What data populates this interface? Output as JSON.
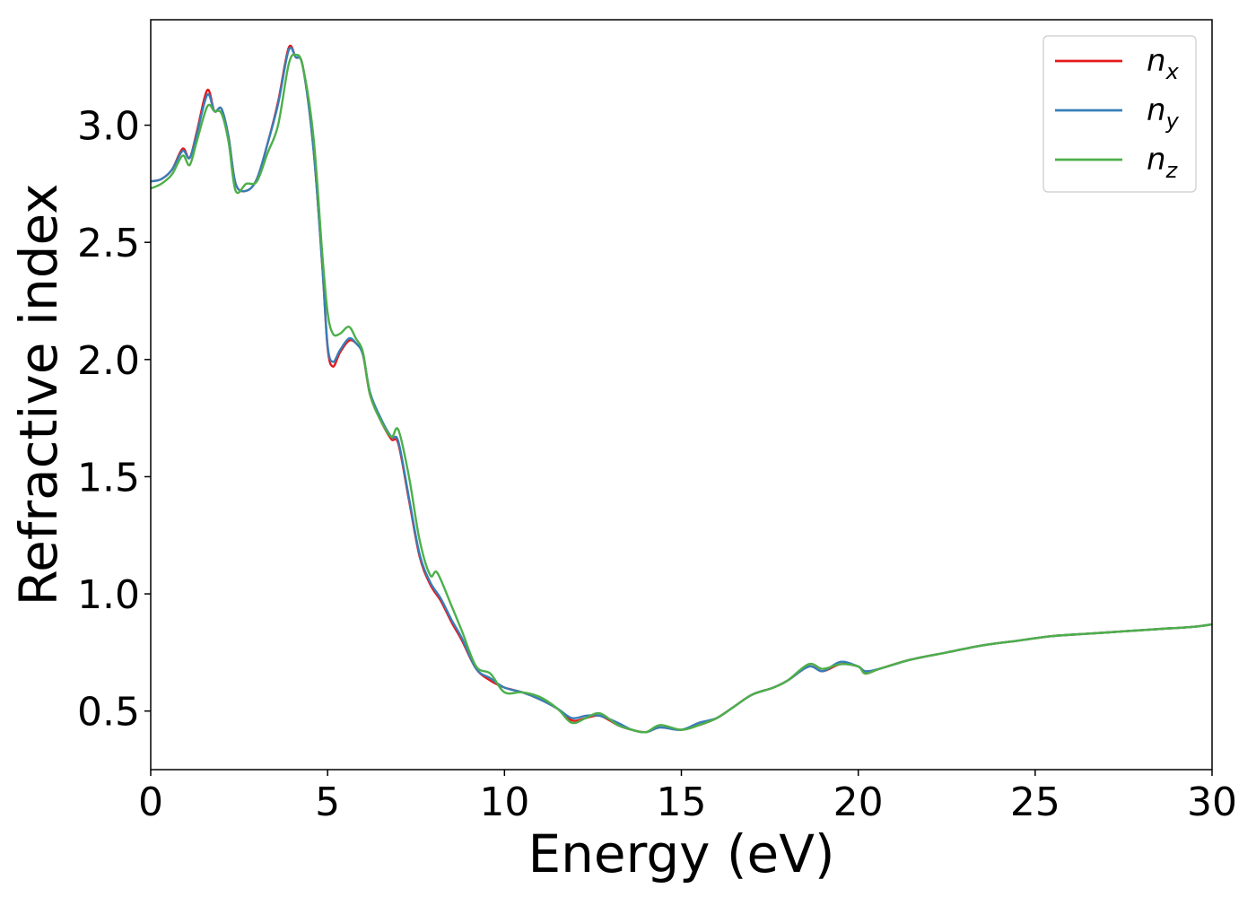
{
  "chart_data": {
    "type": "line",
    "title": "",
    "xlabel": "Energy (eV)",
    "ylabel": "Refractive index",
    "xlim": [
      0,
      30
    ],
    "ylim": [
      0.25,
      3.45
    ],
    "xticks": [
      0,
      5,
      10,
      15,
      20,
      25,
      30
    ],
    "xtick_labels": [
      "0",
      "5",
      "10",
      "15",
      "20",
      "25",
      "30"
    ],
    "yticks": [
      0.5,
      1.0,
      1.5,
      2.0,
      2.5,
      3.0
    ],
    "ytick_labels": [
      "0.5",
      "1.0",
      "1.5",
      "2.0",
      "2.5",
      "3.0"
    ],
    "grid": false,
    "legend_position": "top-right",
    "series": [
      {
        "name": "n_x",
        "label_main": "n",
        "label_sub": "x",
        "color": "#e41a1c",
        "points": [
          [
            0,
            2.76
          ],
          [
            0.3,
            2.77
          ],
          [
            0.6,
            2.81
          ],
          [
            0.9,
            2.9
          ],
          [
            1.1,
            2.86
          ],
          [
            1.3,
            2.97
          ],
          [
            1.6,
            3.15
          ],
          [
            1.8,
            3.06
          ],
          [
            2.0,
            3.07
          ],
          [
            2.2,
            2.95
          ],
          [
            2.4,
            2.75
          ],
          [
            2.7,
            2.72
          ],
          [
            3.0,
            2.77
          ],
          [
            3.3,
            2.92
          ],
          [
            3.6,
            3.1
          ],
          [
            3.9,
            3.33
          ],
          [
            4.1,
            3.29
          ],
          [
            4.3,
            3.25
          ],
          [
            4.6,
            2.9
          ],
          [
            4.85,
            2.4
          ],
          [
            5.0,
            2.05
          ],
          [
            5.15,
            1.97
          ],
          [
            5.35,
            2.03
          ],
          [
            5.6,
            2.08
          ],
          [
            5.8,
            2.07
          ],
          [
            6.0,
            2.02
          ],
          [
            6.2,
            1.85
          ],
          [
            6.5,
            1.74
          ],
          [
            6.8,
            1.66
          ],
          [
            7.0,
            1.64
          ],
          [
            7.3,
            1.4
          ],
          [
            7.6,
            1.16
          ],
          [
            7.9,
            1.04
          ],
          [
            8.2,
            0.97
          ],
          [
            8.5,
            0.88
          ],
          [
            8.8,
            0.8
          ],
          [
            9.2,
            0.68
          ],
          [
            9.6,
            0.63
          ],
          [
            10.0,
            0.6
          ],
          [
            10.5,
            0.58
          ],
          [
            11.0,
            0.55
          ],
          [
            11.5,
            0.51
          ],
          [
            11.9,
            0.46
          ],
          [
            12.3,
            0.47
          ],
          [
            12.7,
            0.48
          ],
          [
            13.2,
            0.44
          ],
          [
            13.6,
            0.42
          ],
          [
            14.0,
            0.41
          ],
          [
            14.4,
            0.43
          ],
          [
            15.0,
            0.42
          ],
          [
            15.5,
            0.44
          ],
          [
            16.0,
            0.47
          ],
          [
            16.5,
            0.52
          ],
          [
            17.0,
            0.57
          ],
          [
            17.6,
            0.6
          ],
          [
            18.0,
            0.63
          ],
          [
            18.6,
            0.69
          ],
          [
            19.0,
            0.67
          ],
          [
            19.5,
            0.7
          ],
          [
            20.0,
            0.69
          ],
          [
            20.2,
            0.66
          ],
          [
            20.6,
            0.68
          ],
          [
            21.5,
            0.72
          ],
          [
            22.5,
            0.75
          ],
          [
            23.5,
            0.78
          ],
          [
            24.5,
            0.8
          ],
          [
            25.5,
            0.82
          ],
          [
            26.5,
            0.83
          ],
          [
            27.5,
            0.84
          ],
          [
            28.5,
            0.85
          ],
          [
            29.5,
            0.86
          ],
          [
            30.0,
            0.87
          ]
        ]
      },
      {
        "name": "n_y",
        "label_main": "n",
        "label_sub": "y",
        "color": "#377eb8",
        "points": [
          [
            0,
            2.76
          ],
          [
            0.3,
            2.77
          ],
          [
            0.6,
            2.81
          ],
          [
            0.9,
            2.89
          ],
          [
            1.1,
            2.86
          ],
          [
            1.3,
            2.96
          ],
          [
            1.6,
            3.13
          ],
          [
            1.8,
            3.06
          ],
          [
            2.0,
            3.07
          ],
          [
            2.2,
            2.95
          ],
          [
            2.4,
            2.75
          ],
          [
            2.7,
            2.72
          ],
          [
            3.0,
            2.77
          ],
          [
            3.3,
            2.92
          ],
          [
            3.6,
            3.09
          ],
          [
            3.9,
            3.32
          ],
          [
            4.1,
            3.29
          ],
          [
            4.3,
            3.25
          ],
          [
            4.6,
            2.9
          ],
          [
            4.85,
            2.4
          ],
          [
            5.0,
            2.06
          ],
          [
            5.15,
            1.99
          ],
          [
            5.35,
            2.04
          ],
          [
            5.6,
            2.09
          ],
          [
            5.8,
            2.07
          ],
          [
            6.0,
            2.02
          ],
          [
            6.2,
            1.86
          ],
          [
            6.5,
            1.75
          ],
          [
            6.8,
            1.67
          ],
          [
            7.0,
            1.65
          ],
          [
            7.3,
            1.41
          ],
          [
            7.6,
            1.17
          ],
          [
            7.9,
            1.05
          ],
          [
            8.2,
            0.98
          ],
          [
            8.5,
            0.89
          ],
          [
            8.8,
            0.81
          ],
          [
            9.2,
            0.68
          ],
          [
            9.6,
            0.64
          ],
          [
            10.0,
            0.6
          ],
          [
            10.5,
            0.58
          ],
          [
            11.0,
            0.55
          ],
          [
            11.5,
            0.51
          ],
          [
            11.9,
            0.47
          ],
          [
            12.3,
            0.48
          ],
          [
            12.7,
            0.48
          ],
          [
            13.2,
            0.45
          ],
          [
            13.6,
            0.42
          ],
          [
            14.0,
            0.41
          ],
          [
            14.4,
            0.43
          ],
          [
            15.0,
            0.42
          ],
          [
            15.5,
            0.45
          ],
          [
            16.0,
            0.47
          ],
          [
            16.5,
            0.52
          ],
          [
            17.0,
            0.57
          ],
          [
            17.6,
            0.6
          ],
          [
            18.0,
            0.63
          ],
          [
            18.6,
            0.69
          ],
          [
            19.0,
            0.67
          ],
          [
            19.5,
            0.71
          ],
          [
            20.0,
            0.69
          ],
          [
            20.2,
            0.67
          ],
          [
            20.6,
            0.68
          ],
          [
            21.5,
            0.72
          ],
          [
            22.5,
            0.75
          ],
          [
            23.5,
            0.78
          ],
          [
            24.5,
            0.8
          ],
          [
            25.5,
            0.82
          ],
          [
            26.5,
            0.83
          ],
          [
            27.5,
            0.84
          ],
          [
            28.5,
            0.85
          ],
          [
            29.5,
            0.86
          ],
          [
            30.0,
            0.87
          ]
        ]
      },
      {
        "name": "n_z",
        "label_main": "n",
        "label_sub": "z",
        "color": "#4daf4a",
        "points": [
          [
            0,
            2.73
          ],
          [
            0.3,
            2.75
          ],
          [
            0.6,
            2.79
          ],
          [
            0.9,
            2.87
          ],
          [
            1.1,
            2.83
          ],
          [
            1.3,
            2.93
          ],
          [
            1.6,
            3.08
          ],
          [
            1.8,
            3.06
          ],
          [
            2.0,
            3.05
          ],
          [
            2.2,
            2.93
          ],
          [
            2.4,
            2.72
          ],
          [
            2.7,
            2.75
          ],
          [
            3.0,
            2.76
          ],
          [
            3.3,
            2.88
          ],
          [
            3.6,
            3.0
          ],
          [
            3.9,
            3.26
          ],
          [
            4.1,
            3.3
          ],
          [
            4.3,
            3.25
          ],
          [
            4.6,
            2.95
          ],
          [
            4.85,
            2.45
          ],
          [
            5.0,
            2.2
          ],
          [
            5.15,
            2.11
          ],
          [
            5.35,
            2.11
          ],
          [
            5.6,
            2.14
          ],
          [
            5.8,
            2.09
          ],
          [
            6.0,
            2.03
          ],
          [
            6.2,
            1.85
          ],
          [
            6.5,
            1.74
          ],
          [
            6.8,
            1.67
          ],
          [
            7.0,
            1.7
          ],
          [
            7.3,
            1.5
          ],
          [
            7.6,
            1.23
          ],
          [
            7.9,
            1.08
          ],
          [
            8.1,
            1.09
          ],
          [
            8.5,
            0.95
          ],
          [
            8.8,
            0.84
          ],
          [
            9.2,
            0.69
          ],
          [
            9.6,
            0.66
          ],
          [
            10.0,
            0.58
          ],
          [
            10.5,
            0.58
          ],
          [
            11.0,
            0.56
          ],
          [
            11.5,
            0.51
          ],
          [
            11.9,
            0.45
          ],
          [
            12.3,
            0.47
          ],
          [
            12.7,
            0.49
          ],
          [
            13.2,
            0.44
          ],
          [
            13.6,
            0.42
          ],
          [
            14.0,
            0.41
          ],
          [
            14.4,
            0.44
          ],
          [
            15.0,
            0.42
          ],
          [
            15.5,
            0.44
          ],
          [
            16.0,
            0.47
          ],
          [
            16.5,
            0.52
          ],
          [
            17.0,
            0.57
          ],
          [
            17.6,
            0.6
          ],
          [
            18.0,
            0.63
          ],
          [
            18.6,
            0.7
          ],
          [
            19.0,
            0.68
          ],
          [
            19.5,
            0.7
          ],
          [
            20.0,
            0.69
          ],
          [
            20.2,
            0.66
          ],
          [
            20.6,
            0.68
          ],
          [
            21.5,
            0.72
          ],
          [
            22.5,
            0.75
          ],
          [
            23.5,
            0.78
          ],
          [
            24.5,
            0.8
          ],
          [
            25.5,
            0.82
          ],
          [
            26.5,
            0.83
          ],
          [
            27.5,
            0.84
          ],
          [
            28.5,
            0.85
          ],
          [
            29.5,
            0.86
          ],
          [
            30.0,
            0.87
          ]
        ]
      }
    ]
  }
}
